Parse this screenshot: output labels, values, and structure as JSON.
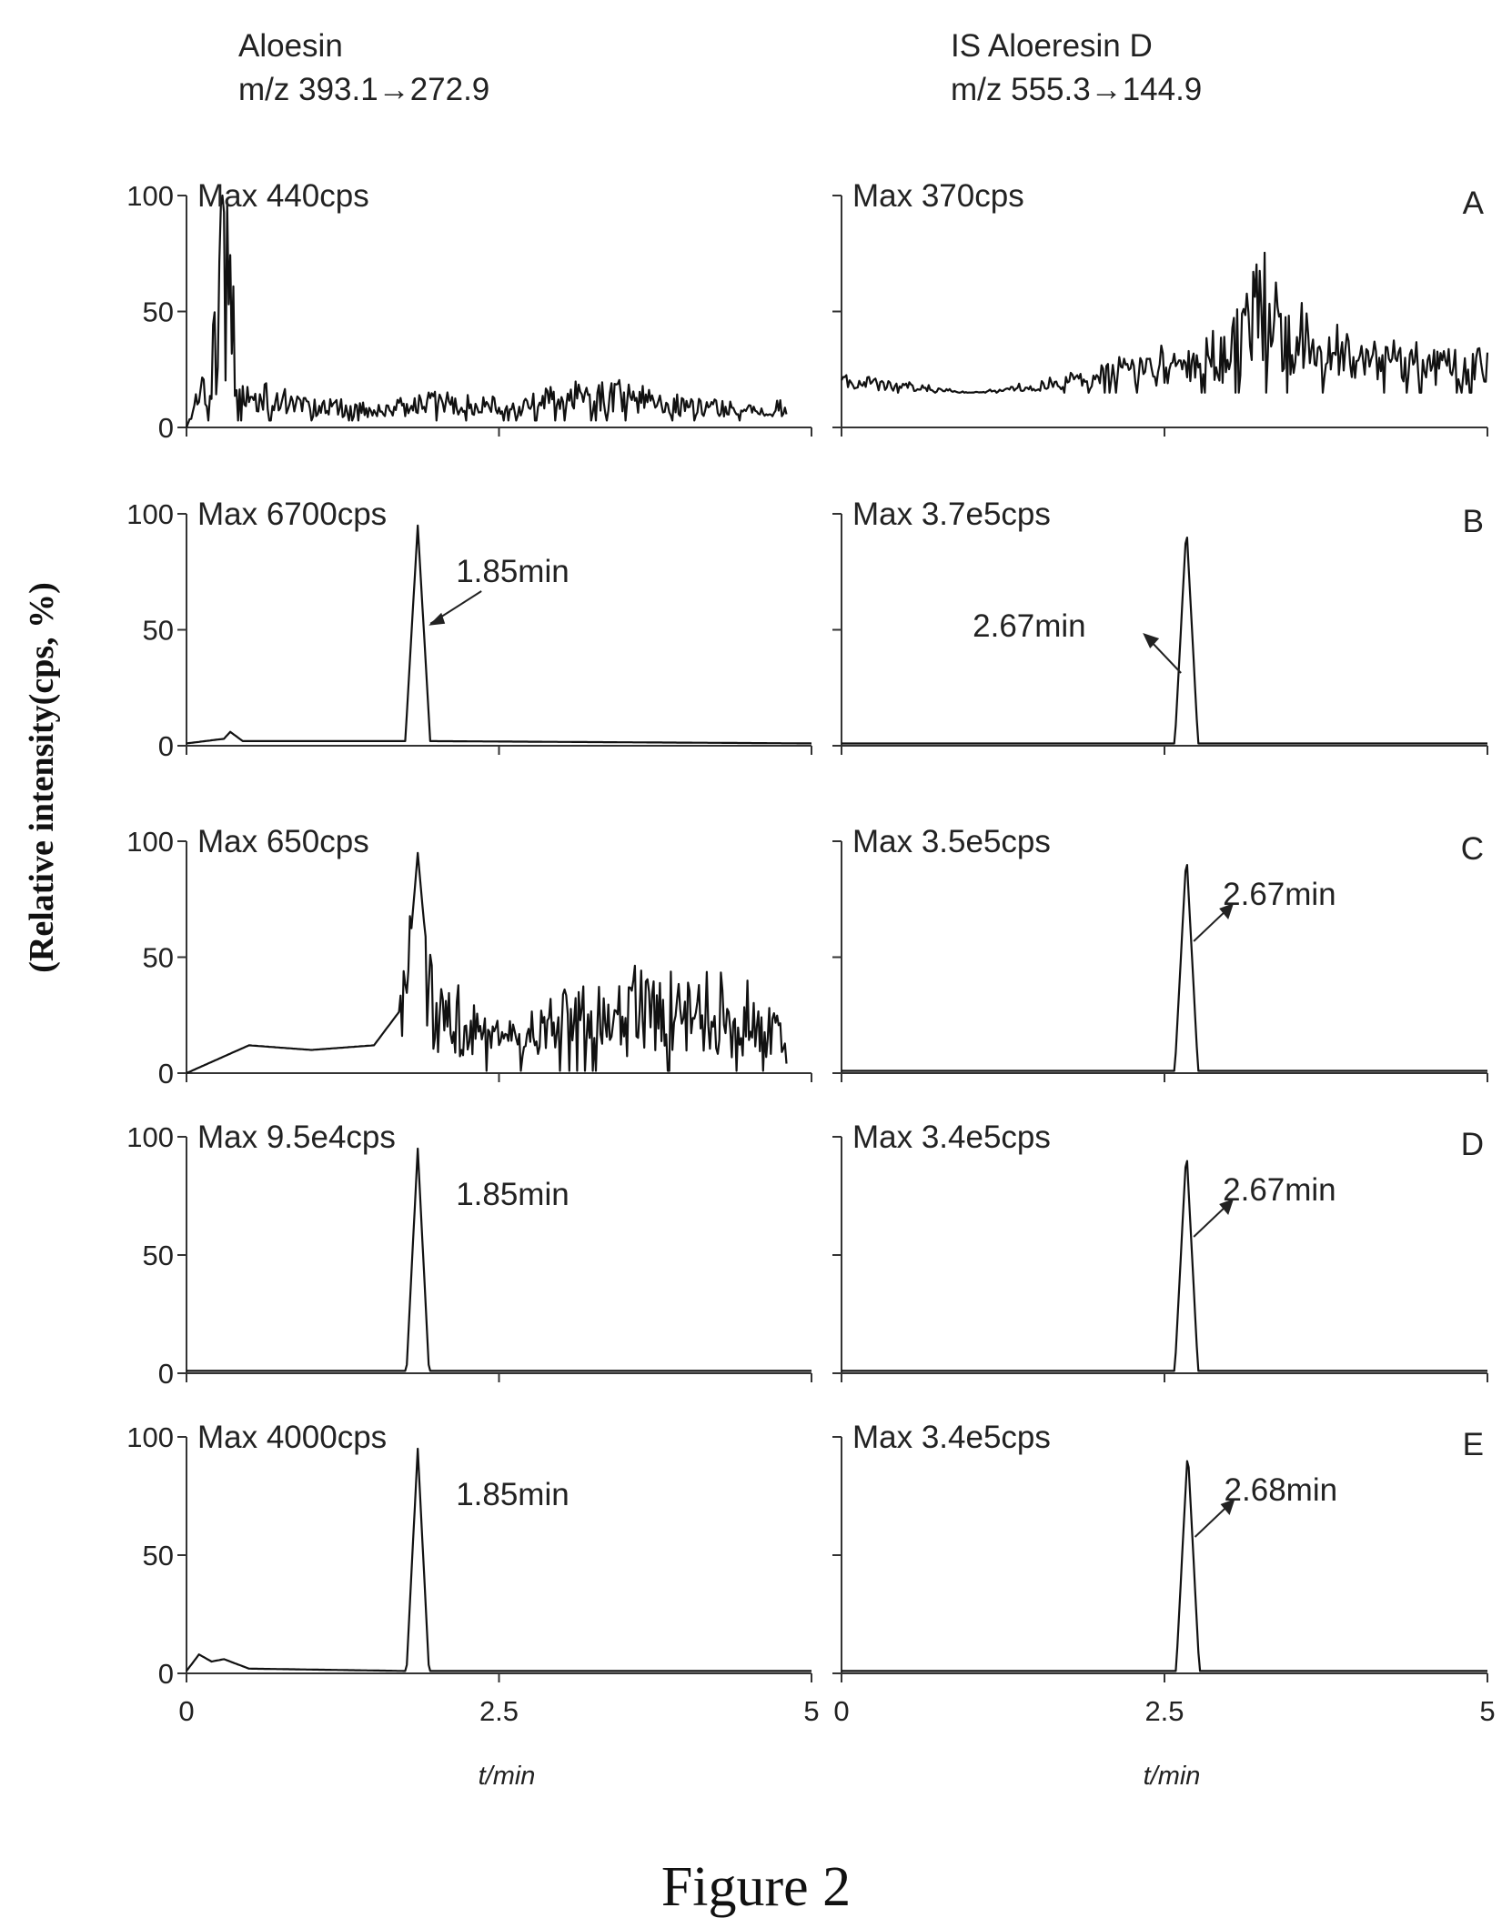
{
  "figure": {
    "caption": "Figure 2",
    "ylabel": "(Relative intensity(cps, %)",
    "xlabel": "t/min",
    "columns": [
      {
        "title": "Aloesin",
        "transition": "m/z 393.1→272.9"
      },
      {
        "title": "IS Aloeresin D",
        "transition": "m/z 555.3→144.9"
      }
    ]
  },
  "chart_data": [
    {
      "type": "line",
      "panel": "A",
      "column": "Aloesin",
      "max_label": "Max 440cps",
      "rt_label": "",
      "peak_rt": null,
      "noise_level": 0.5,
      "noise_start": 0.0,
      "baseline": 3,
      "xlim": [
        0,
        5
      ],
      "ylim": [
        0,
        100
      ],
      "x_ticks": [
        0,
        2.5,
        5
      ],
      "y_ticks": [
        0,
        50,
        100
      ],
      "arrow": "none",
      "series": [
        {
          "x": [
            0.0,
            0.1,
            0.2,
            0.3,
            0.4,
            0.5,
            1.0,
            1.5,
            2.0,
            2.5,
            3.0,
            3.5,
            4.0,
            4.5,
            4.8
          ],
          "y": [
            0,
            15,
            25,
            90,
            30,
            15,
            10,
            8,
            12,
            10,
            14,
            16,
            10,
            8,
            10
          ]
        }
      ]
    },
    {
      "type": "line",
      "panel": "A",
      "column": "IS Aloeresin D",
      "max_label": "Max 370cps",
      "rt_label": "",
      "peak_rt": null,
      "noise_level": 1.0,
      "noise_start": 0.0,
      "baseline": 15,
      "xlim": [
        0,
        5
      ],
      "ylim": [
        0,
        100
      ],
      "x_ticks": [
        0,
        2.5,
        5
      ],
      "y_ticks": [
        0,
        50,
        100
      ],
      "arrow": "none",
      "series": [
        {
          "x": [
            0.0,
            0.5,
            1.0,
            1.5,
            2.0,
            2.5,
            3.0,
            3.2,
            3.5,
            4.0,
            4.5,
            5.0
          ],
          "y": [
            20,
            18,
            15,
            18,
            22,
            28,
            35,
            55,
            38,
            30,
            28,
            28
          ]
        }
      ]
    },
    {
      "type": "line",
      "panel": "B",
      "column": "Aloesin",
      "max_label": "Max 6700cps",
      "rt_label": "1.85min",
      "peak_rt": 1.85,
      "noise_level": 0.0,
      "noise_start": 0.0,
      "baseline": 1,
      "xlim": [
        0,
        5
      ],
      "ylim": [
        0,
        100
      ],
      "x_ticks": [
        0,
        2.5,
        5
      ],
      "y_ticks": [
        0,
        50,
        100
      ],
      "arrow": "pointing-to-peak",
      "series": [
        {
          "x": [
            0.0,
            0.3,
            0.35,
            0.45,
            1.75,
            1.85,
            1.95,
            5.0
          ],
          "y": [
            1,
            3,
            6,
            2,
            2,
            95,
            2,
            1
          ]
        }
      ]
    },
    {
      "type": "line",
      "panel": "B",
      "column": "IS Aloeresin D",
      "max_label": "Max 3.7e5cps",
      "rt_label": "2.67min",
      "peak_rt": 2.67,
      "noise_level": 0.0,
      "noise_start": 0.0,
      "baseline": 1,
      "xlim": [
        0,
        5
      ],
      "ylim": [
        0,
        100
      ],
      "x_ticks": [
        0,
        2.5,
        5
      ],
      "y_ticks": [
        0,
        50,
        100
      ],
      "arrow": "from-peak",
      "series": [
        {
          "x": [
            0.0,
            2.58,
            2.67,
            2.76,
            5.0
          ],
          "y": [
            1,
            1,
            95,
            1,
            1
          ]
        }
      ]
    },
    {
      "type": "line",
      "panel": "C",
      "column": "Aloesin",
      "max_label": "Max 650cps",
      "rt_label": "",
      "peak_rt": 1.85,
      "noise_level": 0.8,
      "noise_start": 1.7,
      "baseline": 1,
      "xlim": [
        0,
        5
      ],
      "ylim": [
        0,
        100
      ],
      "x_ticks": [
        0,
        2.5,
        5
      ],
      "y_ticks": [
        0,
        50,
        100
      ],
      "arrow": "none",
      "series": [
        {
          "x": [
            0.0,
            0.5,
            1.0,
            1.5,
            1.75,
            1.85,
            1.95,
            2.5,
            3.0,
            3.5,
            4.0,
            4.5,
            4.8
          ],
          "y": [
            0,
            12,
            10,
            12,
            30,
            95,
            35,
            15,
            28,
            30,
            30,
            25,
            15
          ]
        }
      ]
    },
    {
      "type": "line",
      "panel": "C",
      "column": "IS Aloeresin D",
      "max_label": "Max 3.5e5cps",
      "rt_label": "2.67min",
      "peak_rt": 2.67,
      "noise_level": 0.0,
      "noise_start": 0.0,
      "baseline": 1,
      "xlim": [
        0,
        5
      ],
      "ylim": [
        0,
        100
      ],
      "x_ticks": [
        0,
        2.5,
        5
      ],
      "y_ticks": [
        0,
        50,
        100
      ],
      "arrow": "from-peak",
      "series": [
        {
          "x": [
            0.0,
            2.58,
            2.67,
            2.76,
            5.0
          ],
          "y": [
            1,
            1,
            95,
            1,
            1
          ]
        }
      ]
    },
    {
      "type": "line",
      "panel": "D",
      "column": "Aloesin",
      "max_label": "Max 9.5e4cps",
      "rt_label": "1.85min",
      "peak_rt": 1.85,
      "noise_level": 0.0,
      "noise_start": 0.0,
      "baseline": 1,
      "xlim": [
        0,
        5
      ],
      "ylim": [
        0,
        100
      ],
      "x_ticks": [
        0,
        2.5,
        5
      ],
      "y_ticks": [
        0,
        50,
        100
      ],
      "arrow": "none",
      "series": [
        {
          "x": [
            0.0,
            1.76,
            1.85,
            1.94,
            5.0
          ],
          "y": [
            1,
            1,
            95,
            1,
            1
          ]
        }
      ]
    },
    {
      "type": "line",
      "panel": "D",
      "column": "IS Aloeresin D",
      "max_label": "Max 3.4e5cps",
      "rt_label": "2.67min",
      "peak_rt": 2.67,
      "noise_level": 0.0,
      "noise_start": 0.0,
      "baseline": 1,
      "xlim": [
        0,
        5
      ],
      "ylim": [
        0,
        100
      ],
      "x_ticks": [
        0,
        2.5,
        5
      ],
      "y_ticks": [
        0,
        50,
        100
      ],
      "arrow": "from-peak",
      "series": [
        {
          "x": [
            0.0,
            2.58,
            2.67,
            2.76,
            5.0
          ],
          "y": [
            1,
            1,
            95,
            1,
            1
          ]
        }
      ]
    },
    {
      "type": "line",
      "panel": "E",
      "column": "Aloesin",
      "max_label": "Max 4000cps",
      "rt_label": "1.85min",
      "peak_rt": 1.85,
      "noise_level": 0.0,
      "noise_start": 0.0,
      "baseline": 1,
      "xlim": [
        0,
        5
      ],
      "ylim": [
        0,
        100
      ],
      "x_ticks": [
        0,
        2.5,
        5
      ],
      "y_ticks": [
        0,
        50,
        100
      ],
      "arrow": "none",
      "series": [
        {
          "x": [
            0.0,
            0.1,
            0.2,
            0.3,
            0.5,
            1.76,
            1.85,
            1.94,
            5.0
          ],
          "y": [
            1,
            8,
            5,
            6,
            2,
            1,
            95,
            1,
            1
          ]
        }
      ]
    },
    {
      "type": "line",
      "panel": "E",
      "column": "IS Aloeresin D",
      "max_label": "Max 3.4e5cps",
      "rt_label": "2.68min",
      "peak_rt": 2.68,
      "noise_level": 0.0,
      "noise_start": 0.0,
      "baseline": 1,
      "xlim": [
        0,
        5
      ],
      "ylim": [
        0,
        100
      ],
      "x_ticks": [
        0,
        2.5,
        5
      ],
      "y_ticks": [
        0,
        50,
        100
      ],
      "arrow": "from-peak",
      "series": [
        {
          "x": [
            0.0,
            2.59,
            2.68,
            2.77,
            5.0
          ],
          "y": [
            1,
            1,
            95,
            1,
            1
          ]
        }
      ]
    }
  ]
}
